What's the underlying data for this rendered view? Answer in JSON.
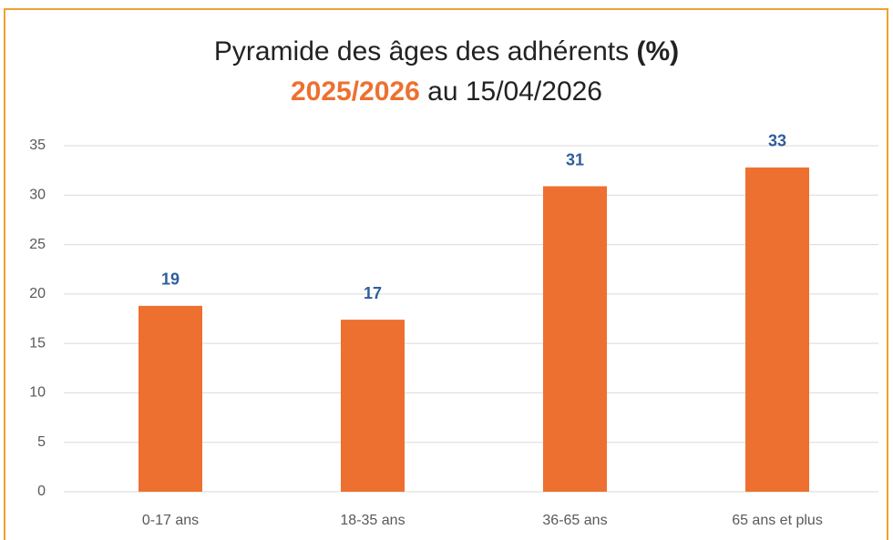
{
  "chart_data": {
    "type": "bar",
    "title": "Pyramide des âges des adhérents",
    "title_unit": "(%)",
    "subtitle_season": "2025/2026",
    "subtitle_date": "au 15/04/2026",
    "categories": [
      "0-17 ans",
      "18-35 ans",
      "36-65 ans",
      "65 ans et plus"
    ],
    "values": [
      18.8,
      17.4,
      30.9,
      32.8
    ],
    "value_labels": [
      "19",
      "17",
      "31",
      "33"
    ],
    "color": "#ed7030",
    "label_color": "#2e5e9a",
    "ylim": [
      0,
      35
    ],
    "yticks": [
      0,
      5,
      10,
      15,
      20,
      25,
      30,
      35
    ],
    "grid": true
  }
}
